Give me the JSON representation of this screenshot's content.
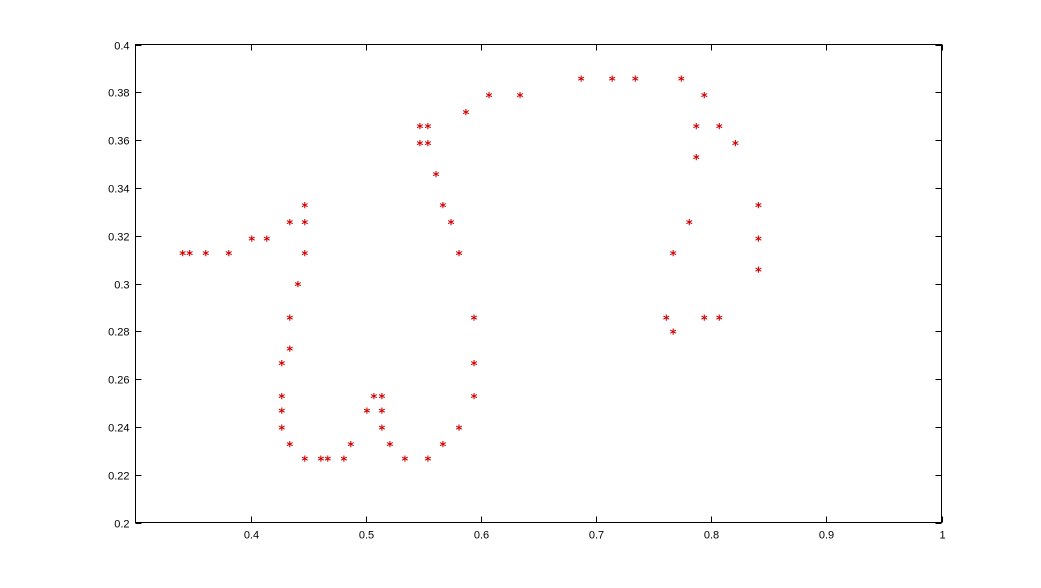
{
  "chart_data": {
    "type": "scatter",
    "title": "",
    "xlabel": "",
    "ylabel": "",
    "xlim": [
      0.3,
      1.0
    ],
    "ylim": [
      0.2,
      0.4
    ],
    "grid": false,
    "marker": "*",
    "marker_color": "#d40000",
    "x_ticks": [
      0.4,
      0.5,
      0.6,
      0.7,
      0.8,
      0.9,
      1.0
    ],
    "x_tick_labels": [
      "0.4",
      "0.5",
      "0.6",
      "0.7",
      "0.8",
      "0.9",
      "1"
    ],
    "y_ticks": [
      0.2,
      0.22,
      0.24,
      0.26,
      0.28,
      0.3,
      0.32,
      0.34,
      0.36,
      0.38,
      0.4
    ],
    "y_tick_labels": [
      "0.2",
      "0.22",
      "0.24",
      "0.26",
      "0.28",
      "0.3",
      "0.32",
      "0.34",
      "0.36",
      "0.38",
      "0.4"
    ],
    "points": [
      [
        0.341,
        0.312
      ],
      [
        0.347,
        0.312
      ],
      [
        0.361,
        0.312
      ],
      [
        0.381,
        0.312
      ],
      [
        0.401,
        0.318
      ],
      [
        0.414,
        0.318
      ],
      [
        0.434,
        0.325
      ],
      [
        0.447,
        0.332
      ],
      [
        0.447,
        0.325
      ],
      [
        0.447,
        0.312
      ],
      [
        0.441,
        0.299
      ],
      [
        0.434,
        0.285
      ],
      [
        0.434,
        0.272
      ],
      [
        0.427,
        0.266
      ],
      [
        0.427,
        0.252
      ],
      [
        0.427,
        0.246
      ],
      [
        0.427,
        0.239
      ],
      [
        0.434,
        0.232
      ],
      [
        0.447,
        0.226
      ],
      [
        0.461,
        0.226
      ],
      [
        0.467,
        0.226
      ],
      [
        0.481,
        0.226
      ],
      [
        0.487,
        0.232
      ],
      [
        0.501,
        0.246
      ],
      [
        0.507,
        0.252
      ],
      [
        0.514,
        0.252
      ],
      [
        0.514,
        0.246
      ],
      [
        0.514,
        0.239
      ],
      [
        0.521,
        0.232
      ],
      [
        0.534,
        0.226
      ],
      [
        0.554,
        0.226
      ],
      [
        0.567,
        0.232
      ],
      [
        0.581,
        0.239
      ],
      [
        0.594,
        0.252
      ],
      [
        0.594,
        0.266
      ],
      [
        0.594,
        0.285
      ],
      [
        0.581,
        0.312
      ],
      [
        0.574,
        0.325
      ],
      [
        0.567,
        0.332
      ],
      [
        0.561,
        0.345
      ],
      [
        0.547,
        0.358
      ],
      [
        0.554,
        0.358
      ],
      [
        0.547,
        0.365
      ],
      [
        0.554,
        0.365
      ],
      [
        0.587,
        0.371
      ],
      [
        0.607,
        0.378
      ],
      [
        0.634,
        0.378
      ],
      [
        0.687,
        0.385
      ],
      [
        0.714,
        0.385
      ],
      [
        0.734,
        0.385
      ],
      [
        0.774,
        0.385
      ],
      [
        0.794,
        0.378
      ],
      [
        0.787,
        0.365
      ],
      [
        0.807,
        0.365
      ],
      [
        0.787,
        0.352
      ],
      [
        0.821,
        0.358
      ],
      [
        0.841,
        0.332
      ],
      [
        0.841,
        0.318
      ],
      [
        0.841,
        0.305
      ],
      [
        0.781,
        0.325
      ],
      [
        0.767,
        0.312
      ],
      [
        0.761,
        0.285
      ],
      [
        0.767,
        0.279
      ],
      [
        0.794,
        0.285
      ],
      [
        0.807,
        0.285
      ]
    ]
  }
}
